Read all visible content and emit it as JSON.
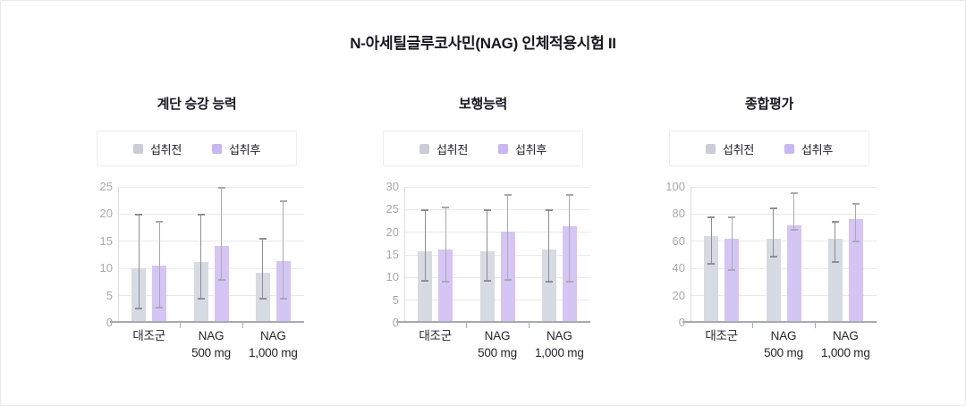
{
  "page": {
    "title": "N-아세틸글루코사민(NAG) 인체적용시험 II"
  },
  "colors": {
    "pre_bar": "#d6dae2",
    "post_bar": "#d5c5f4",
    "pre_swatch": "#c9cdd7",
    "post_swatch": "#c9b6f4",
    "pre_error": "#8e8e97",
    "post_error": "#a9a9b3",
    "axis": "#a9a9b2",
    "y_axis_line": "#dcdce0",
    "grid": "#e9e9ec",
    "y_label": "#a8a8b0",
    "x_label": "#25252b"
  },
  "chart_data": [
    {
      "type": "bar",
      "title": "계단 승강 능력",
      "categories": [
        "대조군",
        "NAG\n500 mg",
        "NAG\n1,000 mg"
      ],
      "ylim": [
        0,
        25
      ],
      "yticks": [
        0,
        5,
        10,
        15,
        20,
        25
      ],
      "legend_position": "top",
      "grid": true,
      "series": [
        {
          "name": "섭취전",
          "values": [
            10.1,
            11.2,
            9.2
          ],
          "err_low": [
            2.5,
            4.2,
            4.2
          ],
          "err_high": [
            20.0,
            20.1,
            15.6
          ]
        },
        {
          "name": "섭취후",
          "values": [
            10.6,
            14.1,
            11.3
          ],
          "err_low": [
            2.6,
            7.7,
            4.2
          ],
          "err_high": [
            18.7,
            25.0,
            22.6
          ]
        }
      ]
    },
    {
      "type": "bar",
      "title": "보행능력",
      "categories": [
        "대조군",
        "NAG\n500 mg",
        "NAG\n1,000 mg"
      ],
      "ylim": [
        0,
        30
      ],
      "yticks": [
        0,
        5,
        10,
        15,
        20,
        25,
        30
      ],
      "legend_position": "top",
      "grid": true,
      "series": [
        {
          "name": "섭취전",
          "values": [
            15.7,
            15.7,
            16.2
          ],
          "err_low": [
            9.0,
            9.0,
            8.8
          ],
          "err_high": [
            25.0,
            25.0,
            25.0
          ]
        },
        {
          "name": "섭취후",
          "values": [
            16.2,
            20.2,
            21.3
          ],
          "err_low": [
            8.9,
            9.2,
            8.9
          ],
          "err_high": [
            25.6,
            28.5,
            28.5
          ]
        }
      ]
    },
    {
      "type": "bar",
      "title": "종합평가",
      "categories": [
        "대조군",
        "NAG\n500 mg",
        "NAG\n1,000 mg"
      ],
      "ylim": [
        0,
        100
      ],
      "yticks": [
        0,
        20,
        40,
        60,
        80,
        100
      ],
      "legend_position": "top",
      "grid": true,
      "series": [
        {
          "name": "섭취전",
          "values": [
            64,
            62,
            62
          ],
          "err_low": [
            43,
            48,
            44
          ],
          "err_high": [
            78,
            85,
            75
          ]
        },
        {
          "name": "섭취후",
          "values": [
            62,
            72,
            76
          ],
          "err_low": [
            38,
            68,
            59
          ],
          "err_high": [
            78,
            96,
            88
          ]
        }
      ]
    }
  ]
}
